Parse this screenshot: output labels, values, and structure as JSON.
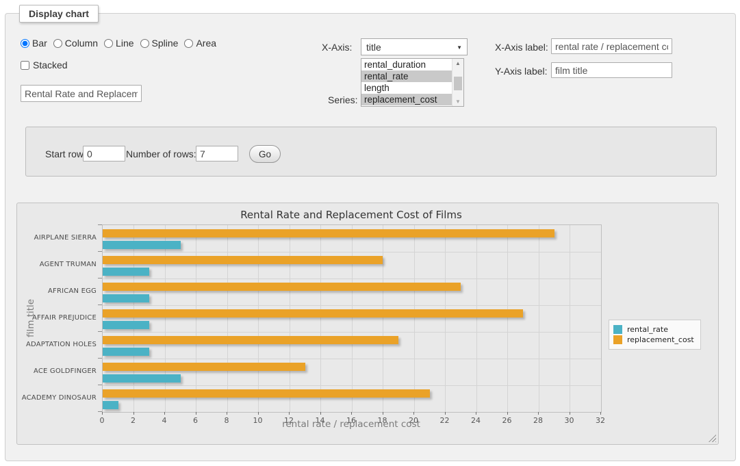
{
  "window": {
    "legend_title": "Display chart"
  },
  "chart_type": {
    "options": [
      {
        "label": "Bar",
        "selected": true
      },
      {
        "label": "Column",
        "selected": false
      },
      {
        "label": "Line",
        "selected": false
      },
      {
        "label": "Spline",
        "selected": false
      },
      {
        "label": "Area",
        "selected": false
      }
    ]
  },
  "stacked": {
    "label": "Stacked",
    "checked": false
  },
  "chart_title_input": {
    "value": "Rental Rate and Replacement Cost of Films"
  },
  "x_axis_select": {
    "label": "X-Axis:",
    "value": "title"
  },
  "series_select": {
    "label": "Series:",
    "options": [
      {
        "label": "rental_duration",
        "selected": false
      },
      {
        "label": "rental_rate",
        "selected": true
      },
      {
        "label": "length",
        "selected": false
      },
      {
        "label": "replacement_cost",
        "selected": true
      }
    ]
  },
  "x_axis_label_input": {
    "label": "X-Axis label:",
    "value": "rental rate / replacement cost"
  },
  "y_axis_label_input": {
    "label": "Y-Axis label:",
    "value": "film title"
  },
  "row_controls": {
    "start_row_label": "Start row:",
    "start_row_value": "0",
    "num_rows_label": "Number of rows:",
    "num_rows_value": "7",
    "go_label": "Go"
  },
  "icons": {
    "dropdown_arrow": "▼",
    "scroll_up_arrow": "▲",
    "scroll_down_arrow": "▼"
  },
  "colors": {
    "rental_rate": "#4bb2c5",
    "replacement_cost": "#EAA228",
    "selected_option_bg": "#c9c9c9",
    "panel_bg": "#e9e9e9"
  },
  "chart_data": {
    "type": "bar",
    "orientation": "horizontal",
    "title": "Rental Rate and Replacement Cost of Films",
    "xlabel": "rental rate / replacement cost",
    "ylabel": "film title",
    "categories": [
      "AIRPLANE SIERRA",
      "AGENT TRUMAN",
      "AFRICAN EGG",
      "AFFAIR PREJUDICE",
      "ADAPTATION HOLES",
      "ACE GOLDFINGER",
      "ACADEMY DINOSAUR"
    ],
    "series": [
      {
        "name": "rental_rate",
        "color": "#4bb2c5",
        "values": [
          4.99,
          2.99,
          2.99,
          2.99,
          2.99,
          4.99,
          0.99
        ]
      },
      {
        "name": "replacement_cost",
        "color": "#EAA228",
        "values": [
          28.99,
          17.99,
          22.99,
          26.99,
          18.99,
          12.99,
          20.99
        ]
      }
    ],
    "xlim": [
      0,
      32
    ],
    "xticks": [
      0,
      2,
      4,
      6,
      8,
      10,
      12,
      14,
      16,
      18,
      20,
      22,
      24,
      26,
      28,
      30,
      32
    ],
    "grid": true,
    "legend_position": "right"
  }
}
